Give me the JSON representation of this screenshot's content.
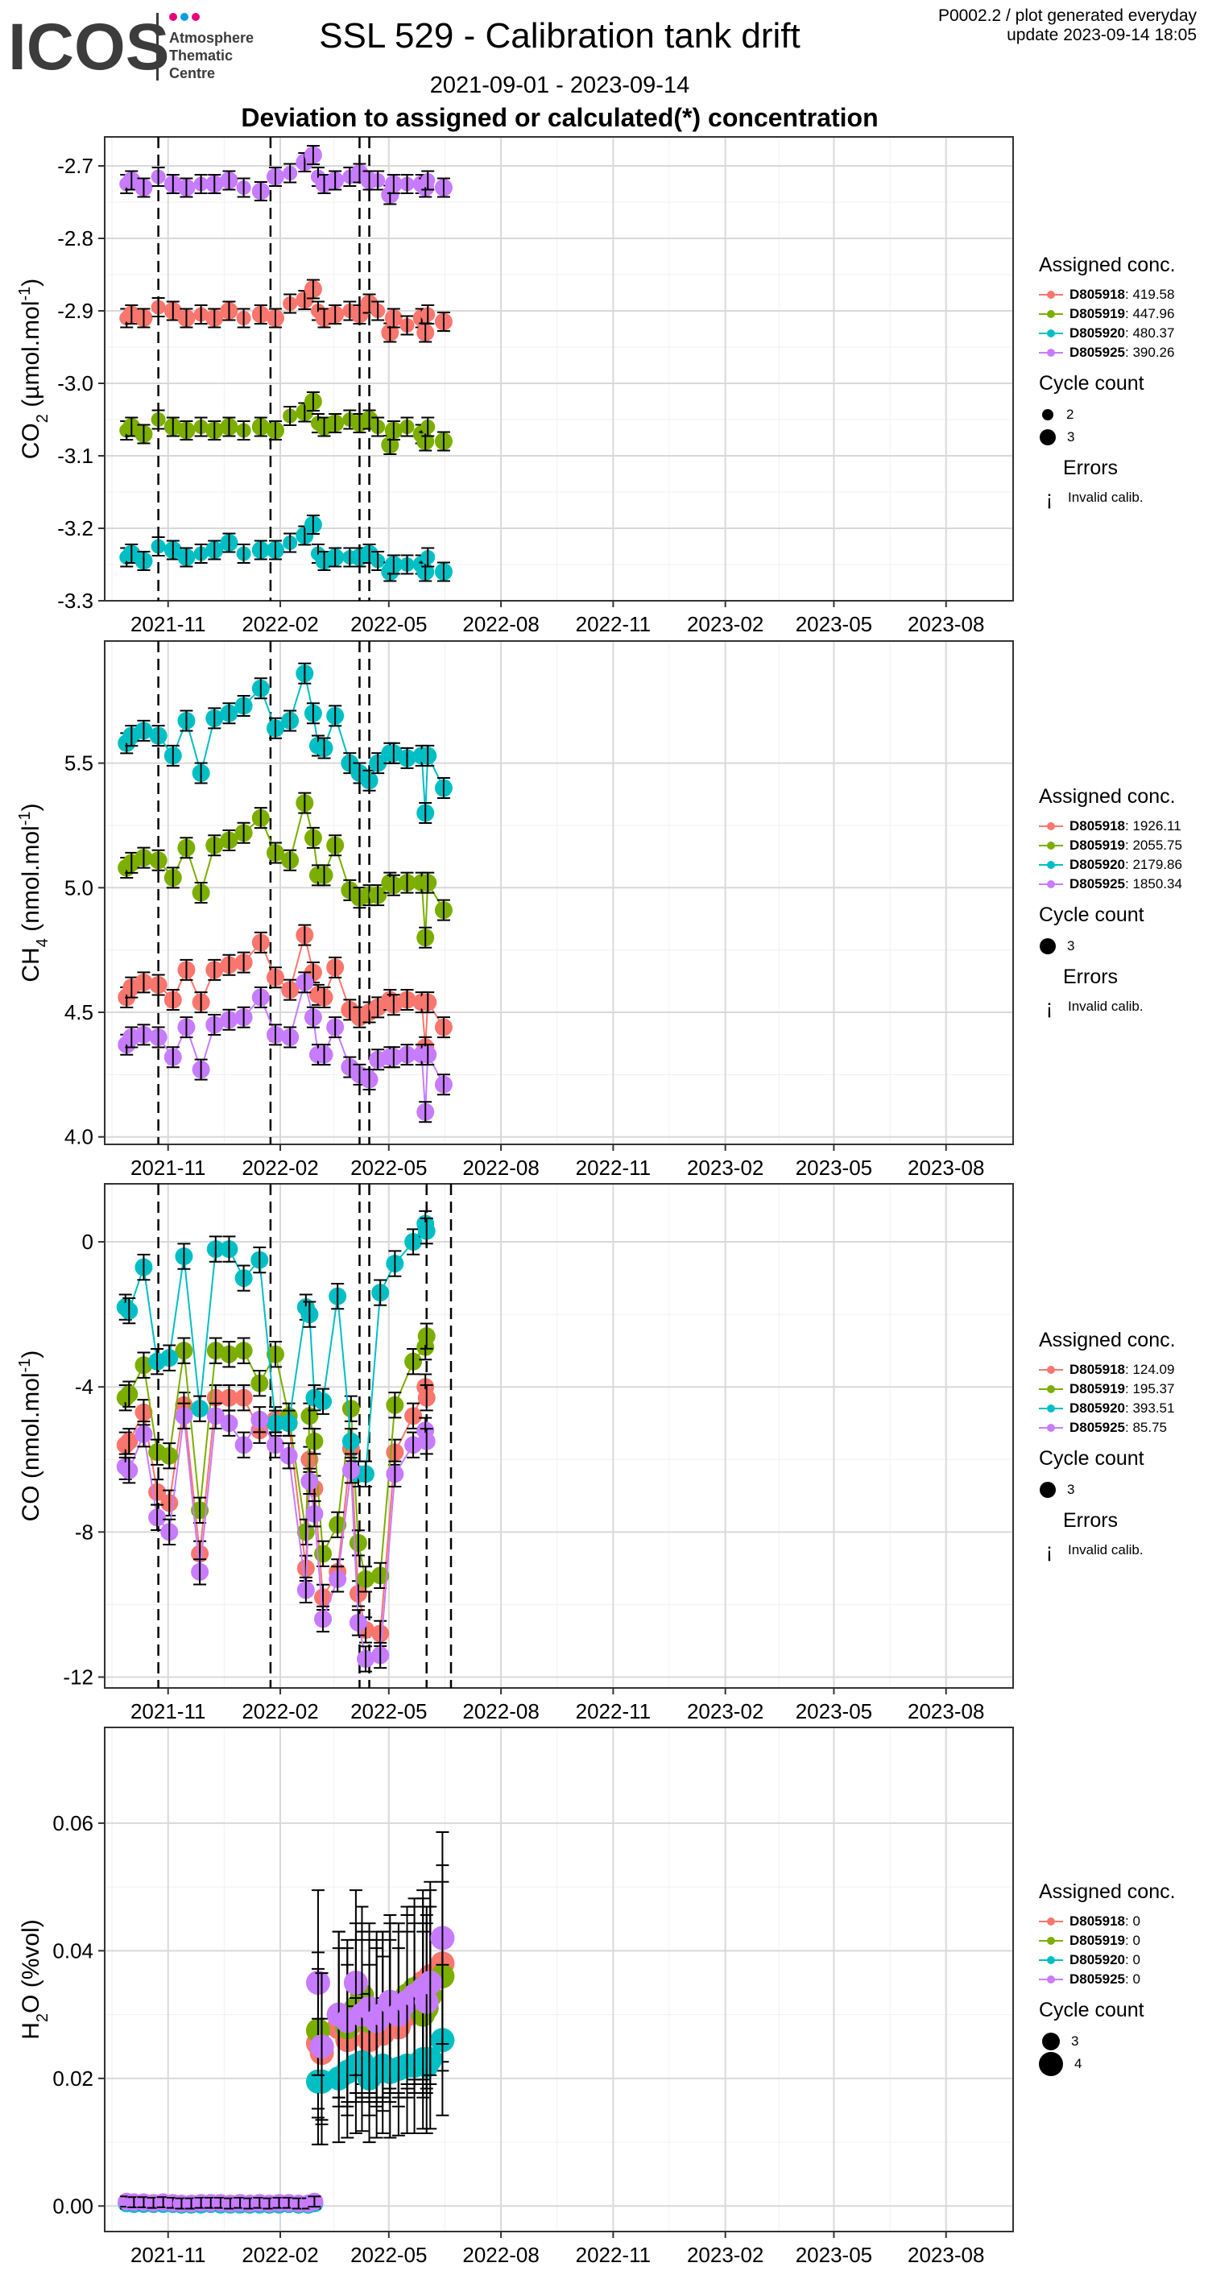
{
  "header": {
    "logo_text": "ICOS",
    "logo_sub": [
      "Atmosphere",
      "Thematic",
      "Centre"
    ],
    "title": "SSL 529 - Calibration tank drift",
    "date_range": "2021-09-01 - 2023-09-14",
    "subtitle": "Deviation to assigned or calculated(*) concentration",
    "plot_id": "P0002.2 / plot generated everyday",
    "update": "update  2023-09-14 18:05"
  },
  "colors": {
    "D805918": "#f8766d",
    "D805919": "#7cae00",
    "D805920": "#00bfc4",
    "D805925": "#c77cff"
  },
  "chart_data": [
    {
      "type": "line",
      "panel": "co2",
      "ylabel": "CO2 (µmol.mol-1)",
      "ylim": [
        -3.3,
        -2.66
      ],
      "yticks": [
        -3.3,
        -3.2,
        -3.1,
        -3.0,
        -2.9,
        -2.8,
        -2.7
      ],
      "ytick_labels": [
        "-3.3",
        "-3.2",
        "-3.1",
        "-3.0",
        "-2.9",
        "-2.8",
        "-2.7"
      ],
      "xlim": [
        "2021-09-10",
        "2023-09-25"
      ],
      "x_ticks": [
        "2021-11",
        "2022-02",
        "2022-05",
        "2022-08",
        "2022-11",
        "2023-02",
        "2023-05",
        "2023-08"
      ],
      "grid": true,
      "vlines": [
        "2021-10-24",
        "2022-01-24",
        "2022-04-07",
        "2022-04-15"
      ],
      "lines": false,
      "legend": {
        "title": "Assigned conc.",
        "entries": [
          {
            "name": "D805918",
            "value": ": 419.58"
          },
          {
            "name": "D805919",
            "value": ": 447.96"
          },
          {
            "name": "D805920",
            "value": ": 480.37"
          },
          {
            "name": "D805925",
            "value": ": 390.26"
          }
        ],
        "cycle_title": "Cycle count",
        "cycle_counts": [
          "2",
          "3"
        ],
        "errors_title": "Errors",
        "error_label": "Invalid calib."
      },
      "x": [
        "2021-09-28",
        "2021-10-02",
        "2021-10-12",
        "2021-10-24",
        "2021-11-05",
        "2021-11-16",
        "2021-11-28",
        "2021-12-09",
        "2021-12-21",
        "2022-01-02",
        "2022-01-16",
        "2022-01-28",
        "2022-02-09",
        "2022-02-21",
        "2022-02-28",
        "2022-03-04",
        "2022-03-09",
        "2022-03-18",
        "2022-03-30",
        "2022-04-07",
        "2022-04-15",
        "2022-04-22",
        "2022-05-02",
        "2022-05-05",
        "2022-05-16",
        "2022-05-28",
        "2022-05-31",
        "2022-06-02",
        "2022-06-15"
      ],
      "series": [
        {
          "name": "D805918",
          "values": [
            -2.91,
            -2.905,
            -2.91,
            -2.895,
            -2.9,
            -2.91,
            -2.905,
            -2.91,
            -2.9,
            -2.91,
            -2.905,
            -2.91,
            -2.89,
            -2.885,
            -2.87,
            -2.9,
            -2.91,
            -2.905,
            -2.9,
            -2.905,
            -2.89,
            -2.9,
            -2.93,
            -2.91,
            -2.92,
            -2.91,
            -2.93,
            -2.905,
            -2.915
          ]
        },
        {
          "name": "D805919",
          "values": [
            -3.065,
            -3.06,
            -3.07,
            -3.05,
            -3.06,
            -3.065,
            -3.06,
            -3.065,
            -3.06,
            -3.065,
            -3.06,
            -3.065,
            -3.045,
            -3.04,
            -3.025,
            -3.055,
            -3.06,
            -3.055,
            -3.05,
            -3.055,
            -3.05,
            -3.06,
            -3.085,
            -3.065,
            -3.06,
            -3.07,
            -3.08,
            -3.06,
            -3.08
          ]
        },
        {
          "name": "D805920",
          "values": [
            -3.24,
            -3.235,
            -3.245,
            -3.225,
            -3.23,
            -3.24,
            -3.235,
            -3.23,
            -3.22,
            -3.235,
            -3.23,
            -3.23,
            -3.22,
            -3.21,
            -3.195,
            -3.235,
            -3.245,
            -3.24,
            -3.24,
            -3.24,
            -3.235,
            -3.245,
            -3.26,
            -3.25,
            -3.25,
            -3.25,
            -3.26,
            -3.24,
            -3.26
          ]
        },
        {
          "name": "D805925",
          "values": [
            -2.725,
            -2.72,
            -2.73,
            -2.715,
            -2.725,
            -2.73,
            -2.725,
            -2.725,
            -2.72,
            -2.73,
            -2.735,
            -2.715,
            -2.71,
            -2.695,
            -2.685,
            -2.715,
            -2.725,
            -2.72,
            -2.715,
            -2.71,
            -2.72,
            -2.72,
            -2.74,
            -2.725,
            -2.725,
            -2.725,
            -2.73,
            -2.72,
            -2.73
          ]
        }
      ]
    },
    {
      "type": "line",
      "panel": "ch4",
      "ylabel": "CH4 (nmol.mol-1)",
      "ylim": [
        3.97,
        5.99
      ],
      "yticks": [
        4.0,
        4.5,
        5.0,
        5.5
      ],
      "ytick_labels": [
        "4.0",
        "4.5",
        "5.0",
        "5.5"
      ],
      "xlim": [
        "2021-09-10",
        "2023-09-25"
      ],
      "x_ticks": [
        "2021-11",
        "2022-02",
        "2022-05",
        "2022-08",
        "2022-11",
        "2023-02",
        "2023-05",
        "2023-08"
      ],
      "grid": true,
      "vlines": [
        "2021-10-24",
        "2022-01-24",
        "2022-04-07",
        "2022-04-15"
      ],
      "lines": true,
      "legend": {
        "title": "Assigned conc.",
        "entries": [
          {
            "name": "D805918",
            "value": ": 1926.11"
          },
          {
            "name": "D805919",
            "value": ": 2055.75"
          },
          {
            "name": "D805920",
            "value": ": 2179.86"
          },
          {
            "name": "D805925",
            "value": ": 1850.34"
          }
        ],
        "cycle_title": "Cycle count",
        "cycle_counts": [
          "3"
        ],
        "errors_title": "Errors",
        "error_label": "Invalid calib."
      },
      "x": [
        "2021-09-28",
        "2021-10-02",
        "2021-10-12",
        "2021-10-24",
        "2021-11-05",
        "2021-11-16",
        "2021-11-28",
        "2021-12-09",
        "2021-12-21",
        "2022-01-02",
        "2022-01-16",
        "2022-01-28",
        "2022-02-09",
        "2022-02-21",
        "2022-02-28",
        "2022-03-04",
        "2022-03-09",
        "2022-03-18",
        "2022-03-30",
        "2022-04-07",
        "2022-04-15",
        "2022-04-22",
        "2022-05-02",
        "2022-05-05",
        "2022-05-16",
        "2022-05-28",
        "2022-05-31",
        "2022-06-02",
        "2022-06-15"
      ],
      "series": [
        {
          "name": "D805918",
          "values": [
            4.56,
            4.6,
            4.62,
            4.61,
            4.55,
            4.67,
            4.54,
            4.67,
            4.69,
            4.7,
            4.78,
            4.64,
            4.59,
            4.81,
            4.66,
            4.57,
            4.56,
            4.68,
            4.51,
            4.48,
            4.5,
            4.52,
            4.55,
            4.53,
            4.55,
            4.54,
            4.36,
            4.54,
            4.44
          ]
        },
        {
          "name": "D805919",
          "values": [
            5.08,
            5.1,
            5.12,
            5.11,
            5.04,
            5.16,
            4.98,
            5.17,
            5.19,
            5.22,
            5.28,
            5.14,
            5.11,
            5.34,
            5.2,
            5.05,
            5.05,
            5.17,
            4.99,
            4.96,
            4.97,
            4.97,
            5.02,
            5.01,
            5.02,
            5.02,
            4.8,
            5.02,
            4.91
          ]
        },
        {
          "name": "D805920",
          "values": [
            5.58,
            5.61,
            5.63,
            5.61,
            5.53,
            5.67,
            5.46,
            5.68,
            5.7,
            5.73,
            5.8,
            5.64,
            5.67,
            5.86,
            5.7,
            5.57,
            5.56,
            5.69,
            5.5,
            5.46,
            5.43,
            5.5,
            5.54,
            5.54,
            5.52,
            5.53,
            5.3,
            5.53,
            5.4
          ]
        },
        {
          "name": "D805925",
          "values": [
            4.37,
            4.4,
            4.41,
            4.4,
            4.32,
            4.44,
            4.27,
            4.45,
            4.47,
            4.48,
            4.56,
            4.41,
            4.4,
            4.62,
            4.48,
            4.33,
            4.33,
            4.44,
            4.28,
            4.25,
            4.23,
            4.31,
            4.32,
            4.32,
            4.33,
            4.33,
            4.1,
            4.33,
            4.21
          ]
        }
      ]
    },
    {
      "type": "line",
      "panel": "co",
      "ylabel": "CO (nmol.mol-1)",
      "ylim": [
        -12.3,
        1.6
      ],
      "yticks": [
        -12,
        -8,
        -4,
        0
      ],
      "ytick_labels": [
        "-12",
        "-8",
        "-4",
        "0"
      ],
      "xlim": [
        "2021-09-10",
        "2023-09-25"
      ],
      "x_ticks": [
        "2021-11",
        "2022-02",
        "2022-05",
        "2022-08",
        "2022-11",
        "2023-02",
        "2023-05",
        "2023-08"
      ],
      "grid": true,
      "vlines": [
        "2021-10-24",
        "2022-01-24",
        "2022-04-07",
        "2022-04-15",
        "2022-06-01",
        "2022-06-21"
      ],
      "lines": true,
      "legend": {
        "title": "Assigned conc.",
        "entries": [
          {
            "name": "D805918",
            "value": ": 124.09"
          },
          {
            "name": "D805919",
            "value": ": 195.37"
          },
          {
            "name": "D805920",
            "value": ": 393.51"
          },
          {
            "name": "D805925",
            "value": ": 85.75"
          }
        ],
        "cycle_title": "Cycle count",
        "cycle_counts": [
          "3"
        ],
        "errors_title": "Errors",
        "error_label": "Invalid calib."
      },
      "x": [
        "2021-09-27",
        "2021-09-30",
        "2021-10-12",
        "2021-10-23",
        "2021-11-02",
        "2021-11-14",
        "2021-11-27",
        "2021-12-10",
        "2021-12-21",
        "2022-01-02",
        "2022-01-15",
        "2022-01-28",
        "2022-02-08",
        "2022-02-22",
        "2022-02-25",
        "2022-03-01",
        "2022-03-08",
        "2022-03-20",
        "2022-03-31",
        "2022-04-06",
        "2022-04-12",
        "2022-04-24",
        "2022-05-06",
        "2022-05-21",
        "2022-05-31",
        "2022-06-01"
      ],
      "series": [
        {
          "name": "D805918",
          "values": [
            -5.6,
            -5.5,
            -4.7,
            -6.9,
            -7.2,
            -4.5,
            -8.6,
            -4.3,
            -4.3,
            -4.3,
            -5.2,
            -4.9,
            -5.0,
            -9.0,
            -6.0,
            -6.8,
            -9.8,
            -9.1,
            -5.7,
            -9.7,
            -10.7,
            -10.8,
            -5.8,
            -4.8,
            -4.0,
            -4.3
          ]
        },
        {
          "name": "D805919",
          "values": [
            -4.3,
            -4.2,
            -3.4,
            -5.8,
            -5.9,
            -3.0,
            -7.4,
            -3.0,
            -3.1,
            -3.0,
            -3.9,
            -3.1,
            -4.8,
            -8.0,
            -4.8,
            -5.5,
            -8.6,
            -7.8,
            -4.6,
            -8.3,
            -9.3,
            -9.2,
            -4.5,
            -3.3,
            -2.9,
            -2.6
          ]
        },
        {
          "name": "D805920",
          "values": [
            -1.8,
            -1.9,
            -0.7,
            -3.3,
            -3.2,
            -0.4,
            -4.6,
            -0.2,
            -0.2,
            -1.0,
            -0.5,
            -5.0,
            -5.0,
            -1.8,
            -2.0,
            -4.3,
            -4.4,
            -1.5,
            -5.5,
            -6.4,
            -6.4,
            -1.4,
            -0.6,
            0.0,
            0.5,
            0.3
          ]
        },
        {
          "name": "D805925",
          "values": [
            -6.2,
            -6.3,
            -5.3,
            -7.6,
            -8.0,
            -4.8,
            -9.1,
            -4.8,
            -5.0,
            -5.6,
            -4.9,
            -5.6,
            -5.9,
            -9.6,
            -6.6,
            -7.5,
            -10.4,
            -9.3,
            -6.3,
            -10.5,
            -11.5,
            -11.4,
            -6.4,
            -5.6,
            -5.2,
            -5.5
          ]
        }
      ]
    },
    {
      "type": "scatter",
      "panel": "h2o",
      "ylabel": "H2O (%vol)",
      "ylim": [
        -0.004,
        0.075
      ],
      "yticks": [
        0.0,
        0.02,
        0.04,
        0.06
      ],
      "ytick_labels": [
        "0.00",
        "0.02",
        "0.04",
        "0.06"
      ],
      "xlim": [
        "2021-09-10",
        "2023-09-25"
      ],
      "x_ticks": [
        "2021-11",
        "2022-02",
        "2022-05",
        "2022-08",
        "2022-11",
        "2023-02",
        "2023-05",
        "2023-08"
      ],
      "grid": true,
      "vlines": [],
      "lines": false,
      "legend": {
        "title": "Assigned conc.",
        "entries": [
          {
            "name": "D805918",
            "value": ": 0"
          },
          {
            "name": "D805919",
            "value": ": 0"
          },
          {
            "name": "D805920",
            "value": ": 0"
          },
          {
            "name": "D805925",
            "value": ": 0"
          }
        ],
        "cycle_title": "Cycle count",
        "cycle_counts": [
          "3",
          "4"
        ],
        "errors_title": "",
        "error_label": ""
      },
      "x": [
        "2021-09-28",
        "2021-10-04",
        "2021-10-12",
        "2021-10-20",
        "2021-10-28",
        "2021-11-05",
        "2021-11-12",
        "2021-11-20",
        "2021-11-28",
        "2021-12-06",
        "2021-12-14",
        "2021-12-22",
        "2021-12-30",
        "2022-01-07",
        "2022-01-15",
        "2022-01-23",
        "2022-01-31",
        "2022-02-08",
        "2022-02-16",
        "2022-02-24",
        "2022-03-01",
        "2022-03-04",
        "2022-03-07",
        "2022-03-21",
        "2022-03-28",
        "2022-04-04",
        "2022-04-09",
        "2022-04-15",
        "2022-04-21",
        "2022-04-26",
        "2022-05-02",
        "2022-05-09",
        "2022-05-16",
        "2022-05-22",
        "2022-05-29",
        "2022-06-01",
        "2022-06-04",
        "2022-06-14"
      ],
      "series": [
        {
          "name": "D805918",
          "values": [
            0.0005,
            0.0004,
            0.0004,
            0.0003,
            0.0004,
            0.0003,
            0.0002,
            0.0002,
            0.0003,
            0.0003,
            0.0003,
            0.0002,
            0.0003,
            0.0002,
            0.0003,
            0.0002,
            0.0003,
            0.0003,
            0.0002,
            0.0002,
            0.0005,
            0.0255,
            0.024,
            0.028,
            0.026,
            0.029,
            0.03,
            0.026,
            0.028,
            0.027,
            0.029,
            0.028,
            0.03,
            0.031,
            0.035,
            0.033,
            0.036,
            0.038
          ]
        },
        {
          "name": "D805919",
          "values": [
            0.0006,
            0.0005,
            0.0005,
            0.0004,
            0.0005,
            0.0004,
            0.0003,
            0.0003,
            0.0004,
            0.0004,
            0.0004,
            0.0003,
            0.0004,
            0.0003,
            0.0004,
            0.0003,
            0.0004,
            0.0004,
            0.0003,
            0.0003,
            0.0006,
            0.0275,
            0.025,
            0.03,
            0.028,
            0.031,
            0.033,
            0.029,
            0.03,
            0.03,
            0.031,
            0.031,
            0.033,
            0.034,
            0.03,
            0.031,
            0.033,
            0.036
          ]
        },
        {
          "name": "D805920",
          "values": [
            0.0004,
            0.0003,
            0.0003,
            0.0003,
            0.0003,
            0.0003,
            0.0002,
            0.0002,
            0.0002,
            0.0003,
            0.0002,
            0.0002,
            0.0002,
            0.0002,
            0.0002,
            0.0002,
            0.0002,
            0.0003,
            0.0002,
            0.0002,
            0.0004,
            0.0195,
            0.0195,
            0.02,
            0.021,
            0.022,
            0.0225,
            0.02,
            0.021,
            0.022,
            0.021,
            0.0215,
            0.022,
            0.022,
            0.023,
            0.022,
            0.023,
            0.026
          ]
        },
        {
          "name": "D805925",
          "values": [
            0.0007,
            0.0006,
            0.0006,
            0.0005,
            0.0006,
            0.0005,
            0.0004,
            0.0004,
            0.0005,
            0.0005,
            0.0005,
            0.0004,
            0.0005,
            0.0004,
            0.0005,
            0.0004,
            0.0005,
            0.0005,
            0.0004,
            0.0004,
            0.0007,
            0.035,
            0.025,
            0.03,
            0.029,
            0.035,
            0.03,
            0.031,
            0.029,
            0.03,
            0.032,
            0.03,
            0.032,
            0.033,
            0.034,
            0.032,
            0.035,
            0.042
          ]
        }
      ]
    }
  ]
}
